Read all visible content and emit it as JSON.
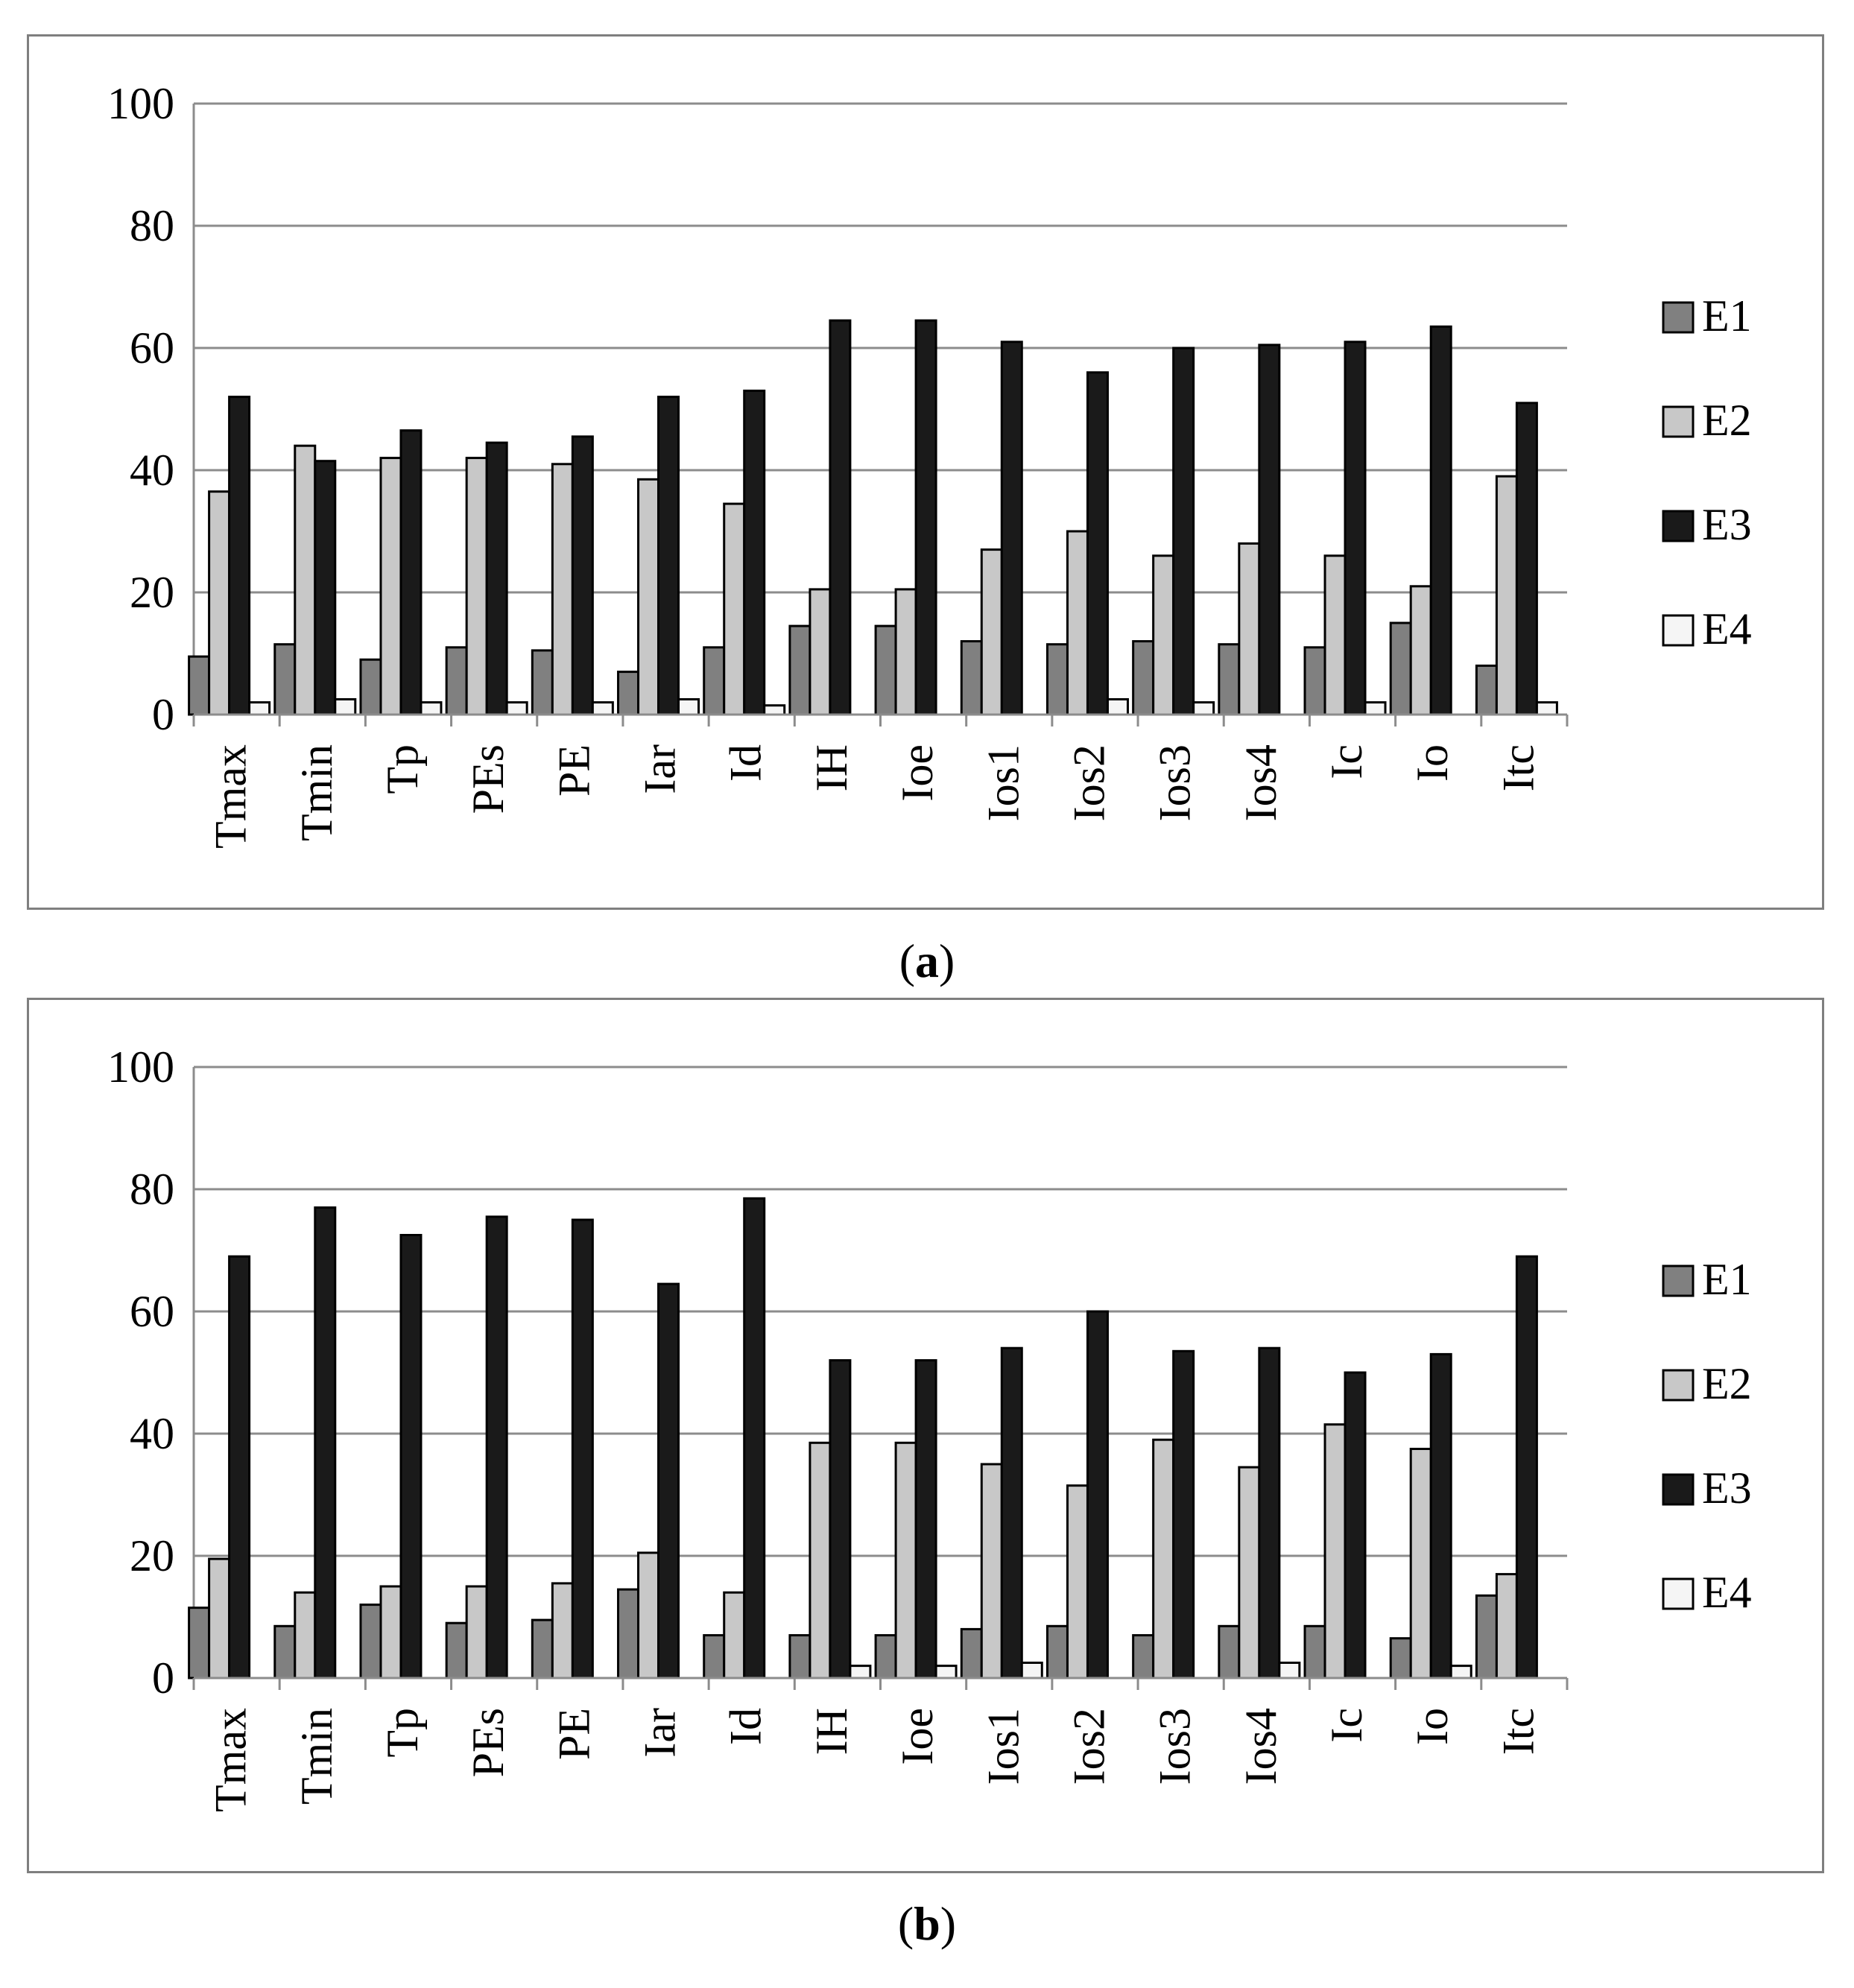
{
  "chart_data": [
    {
      "type": "bar",
      "panel_label": "a",
      "categories": [
        "Tmax",
        "Tmin",
        "Tp",
        "PEs",
        "PE",
        "Iar",
        "Id",
        "IH",
        "Ioe",
        "Ios1",
        "Ios2",
        "Ios3",
        "Ios4",
        "Ic",
        "Io",
        "Itc"
      ],
      "series": [
        {
          "name": "E1",
          "color": "#808080",
          "values": [
            9.5,
            11.5,
            9,
            11,
            10.5,
            7,
            11,
            14.5,
            14.5,
            12,
            11.5,
            12,
            11.5,
            11,
            15,
            8
          ]
        },
        {
          "name": "E2",
          "color": "#c8c8c8",
          "values": [
            36.5,
            44,
            42,
            42,
            41,
            38.5,
            34.5,
            20.5,
            20.5,
            27,
            30,
            26,
            28,
            26,
            21,
            39
          ]
        },
        {
          "name": "E3",
          "color": "#1a1a1a",
          "values": [
            52,
            41.5,
            46.5,
            44.5,
            45.5,
            52,
            53,
            64.5,
            64.5,
            61,
            56,
            60,
            60.5,
            61,
            63.5,
            51
          ]
        },
        {
          "name": "E4",
          "color": "#f5f5f5",
          "values": [
            2,
            2.5,
            2,
            2,
            2,
            2.5,
            1.5,
            0,
            0,
            0,
            2.5,
            2,
            0,
            2,
            0,
            2
          ]
        }
      ],
      "yticks": [
        "0",
        "20",
        "40",
        "60",
        "80",
        "100"
      ],
      "ylim": [
        0,
        100
      ],
      "grid": true,
      "legend_position": "right"
    },
    {
      "type": "bar",
      "panel_label": "b",
      "categories": [
        "Tmax",
        "Tmin",
        "Tp",
        "PEs",
        "PE",
        "Iar",
        "Id",
        "IH",
        "Ioe",
        "Ios1",
        "Ios2",
        "Ios3",
        "Ios4",
        "Ic",
        "Io",
        "Itc"
      ],
      "series": [
        {
          "name": "E1",
          "color": "#808080",
          "values": [
            11.5,
            8.5,
            12,
            9,
            9.5,
            14.5,
            7,
            7,
            7,
            8,
            8.5,
            7,
            8.5,
            8.5,
            6.5,
            13.5
          ]
        },
        {
          "name": "E2",
          "color": "#c8c8c8",
          "values": [
            19.5,
            14,
            15,
            15,
            15.5,
            20.5,
            14,
            38.5,
            38.5,
            35,
            31.5,
            39,
            34.5,
            41.5,
            37.5,
            17
          ]
        },
        {
          "name": "E3",
          "color": "#1a1a1a",
          "values": [
            69,
            77,
            72.5,
            75.5,
            75,
            64.5,
            78.5,
            52,
            52,
            54,
            60,
            53.5,
            54,
            50,
            53,
            69
          ]
        },
        {
          "name": "E4",
          "color": "#f5f5f5",
          "values": [
            0,
            0,
            0,
            0,
            0,
            0,
            0,
            2,
            2,
            2.5,
            0,
            0,
            2.5,
            0,
            2,
            0
          ]
        }
      ],
      "yticks": [
        "0",
        "20",
        "40",
        "60",
        "80",
        "100"
      ],
      "ylim": [
        0,
        100
      ],
      "grid": true,
      "legend_position": "right"
    }
  ]
}
